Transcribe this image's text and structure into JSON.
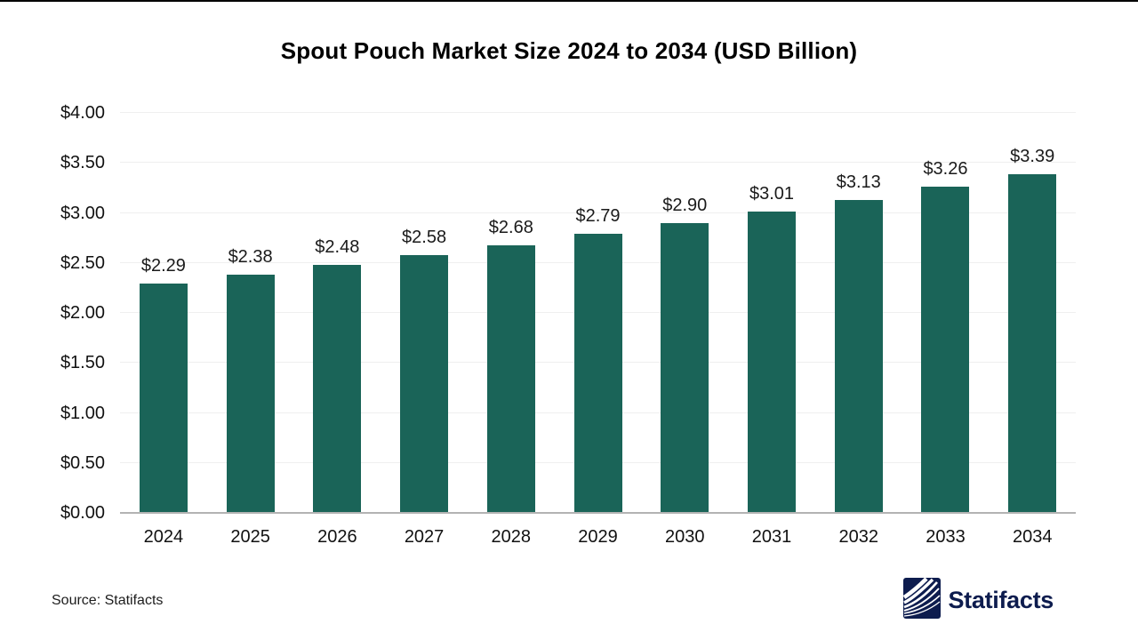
{
  "page": {
    "background": "#ffffff",
    "top_border_color": "#000000"
  },
  "title": "Spout Pouch Market Size 2024 to 2034 (USD Billion)",
  "source_note": "Source: Statifacts",
  "logo": {
    "brand": "Statifacts",
    "icon": "statifacts-waves-icon",
    "color": "#0d1c4e"
  },
  "chart_data": {
    "type": "bar",
    "title": "Spout Pouch Market Size 2024 to 2034 (USD Billion)",
    "categories": [
      "2024",
      "2025",
      "2026",
      "2027",
      "2028",
      "2029",
      "2030",
      "2031",
      "2032",
      "2033",
      "2034"
    ],
    "values": [
      2.29,
      2.38,
      2.48,
      2.58,
      2.68,
      2.79,
      2.9,
      3.01,
      3.13,
      3.26,
      3.39
    ],
    "value_labels": [
      "$2.29",
      "$2.38",
      "$2.48",
      "$2.58",
      "$2.68",
      "$2.79",
      "$2.90",
      "$3.01",
      "$3.13",
      "$3.26",
      "$3.39"
    ],
    "xlabel": "",
    "ylabel": "",
    "ylim": [
      0,
      4
    ],
    "ytick_step": 0.5,
    "ytick_labels": [
      "$0.00",
      "$0.50",
      "$1.00",
      "$1.50",
      "$2.00",
      "$2.50",
      "$3.00",
      "$3.50",
      "$4.00"
    ],
    "grid": true,
    "legend": false,
    "bar_color": "#1a6458",
    "gridline_color": "#efefef",
    "axis_line_color": "#b3b3b3",
    "tick_label_color": "#111111",
    "value_label_color": "#1a1a1a"
  }
}
